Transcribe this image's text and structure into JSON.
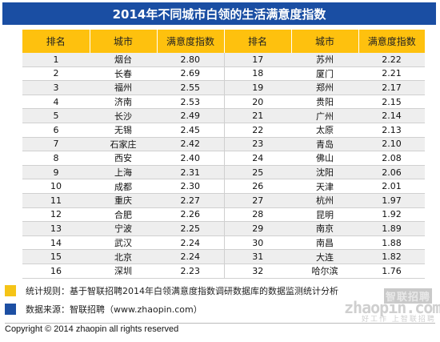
{
  "title": "2014年不同城市白领的生活满意度指数",
  "table": {
    "headers": [
      "排名",
      "城市",
      "满意度指数",
      "排名",
      "城市",
      "满意度指数"
    ],
    "rows": [
      [
        "1",
        "烟台",
        "2.80",
        "17",
        "苏州",
        "2.22"
      ],
      [
        "2",
        "长春",
        "2.69",
        "18",
        "厦门",
        "2.21"
      ],
      [
        "3",
        "福州",
        "2.55",
        "19",
        "郑州",
        "2.17"
      ],
      [
        "4",
        "济南",
        "2.53",
        "20",
        "贵阳",
        "2.15"
      ],
      [
        "5",
        "长沙",
        "2.49",
        "21",
        "广州",
        "2.14"
      ],
      [
        "6",
        "无锡",
        "2.45",
        "22",
        "太原",
        "2.13"
      ],
      [
        "7",
        "石家庄",
        "2.42",
        "23",
        "青岛",
        "2.10"
      ],
      [
        "8",
        "西安",
        "2.40",
        "24",
        "佛山",
        "2.08"
      ],
      [
        "9",
        "上海",
        "2.31",
        "25",
        "沈阳",
        "2.06"
      ],
      [
        "10",
        "成都",
        "2.30",
        "26",
        "天津",
        "2.01"
      ],
      [
        "11",
        "重庆",
        "2.27",
        "27",
        "杭州",
        "1.97"
      ],
      [
        "12",
        "合肥",
        "2.26",
        "28",
        "昆明",
        "1.92"
      ],
      [
        "13",
        "宁波",
        "2.25",
        "29",
        "南京",
        "1.89"
      ],
      [
        "14",
        "武汉",
        "2.24",
        "30",
        "南昌",
        "1.88"
      ],
      [
        "15",
        "北京",
        "2.24",
        "31",
        "大连",
        "1.82"
      ],
      [
        "16",
        "深圳",
        "2.23",
        "32",
        "哈尔滨",
        "1.76"
      ]
    ]
  },
  "notes": {
    "rule": "统计规则：基于智联招聘2014年白领满意度指数调研数据库的数据监测统计分析",
    "source": "数据来源：智联招聘（www.zhaopin.com）"
  },
  "logo": {
    "cn": "智联招聘",
    "en": "zhaopin.com",
    "tagline": "好工作 上智联招聘"
  },
  "copyright": "Copyright  ©  2014 zhaopin all rights reserved",
  "colors": {
    "title_bg": "#1a4ea3",
    "header_bg": "#fec10e",
    "rule_square": "#f5c417",
    "source_square": "#1d4fa3"
  }
}
